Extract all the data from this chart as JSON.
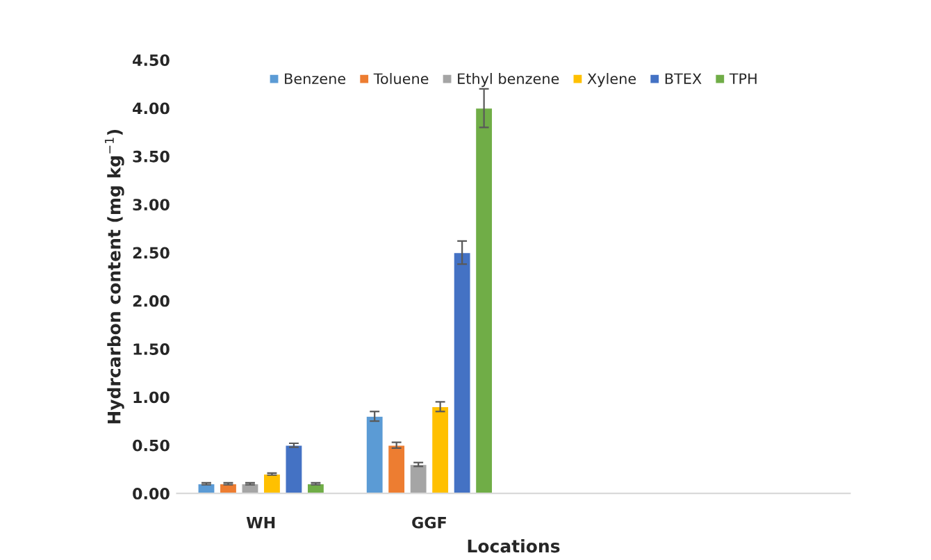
{
  "chart_data": {
    "type": "bar",
    "xlabel": "Locations",
    "ylabel": "Hydrcarbon content (mg kg$^{−1}$)",
    "categories": [
      "WH",
      "GGF",
      null,
      null
    ],
    "series": [
      {
        "name": "Benzene",
        "color": "#5b9bd5",
        "values": [
          0.1,
          0.8,
          null,
          null
        ],
        "errors": [
          0.01,
          0.05,
          null,
          null
        ]
      },
      {
        "name": "Toluene",
        "color": "#ed7d31",
        "values": [
          0.1,
          0.5,
          null,
          null
        ],
        "errors": [
          0.01,
          0.03,
          null,
          null
        ]
      },
      {
        "name": "Ethyl benzene",
        "color": "#a5a5a5",
        "values": [
          0.1,
          0.3,
          null,
          null
        ],
        "errors": [
          0.01,
          0.02,
          null,
          null
        ]
      },
      {
        "name": "Xylene",
        "color": "#ffc000",
        "values": [
          0.2,
          0.9,
          null,
          null
        ],
        "errors": [
          0.01,
          0.05,
          null,
          null
        ]
      },
      {
        "name": "BTEX",
        "color": "#4472c4",
        "values": [
          0.5,
          2.5,
          null,
          null
        ],
        "errors": [
          0.02,
          0.12,
          null,
          null
        ]
      },
      {
        "name": "TPH",
        "color": "#70ad47",
        "values": [
          0.1,
          4.0,
          null,
          null
        ],
        "errors": [
          0.01,
          0.2,
          null,
          null
        ]
      }
    ],
    "ylim": [
      0,
      4.5
    ],
    "yticks": [
      {
        "value": 0,
        "label": "0.00"
      },
      {
        "value": 0.5,
        "label": "0.50"
      },
      {
        "value": 1,
        "label": "1.00"
      },
      {
        "value": 1.5,
        "label": "1.50"
      },
      {
        "value": 2,
        "label": "2.00"
      },
      {
        "value": 2.5,
        "label": "2.50"
      },
      {
        "value": 3,
        "label": "3.00"
      },
      {
        "value": 3.5,
        "label": "3.50"
      },
      {
        "value": 4,
        "label": "4.00"
      },
      {
        "value": 4.5,
        "label": "4.50"
      }
    ],
    "grid": false,
    "legend": "top"
  }
}
